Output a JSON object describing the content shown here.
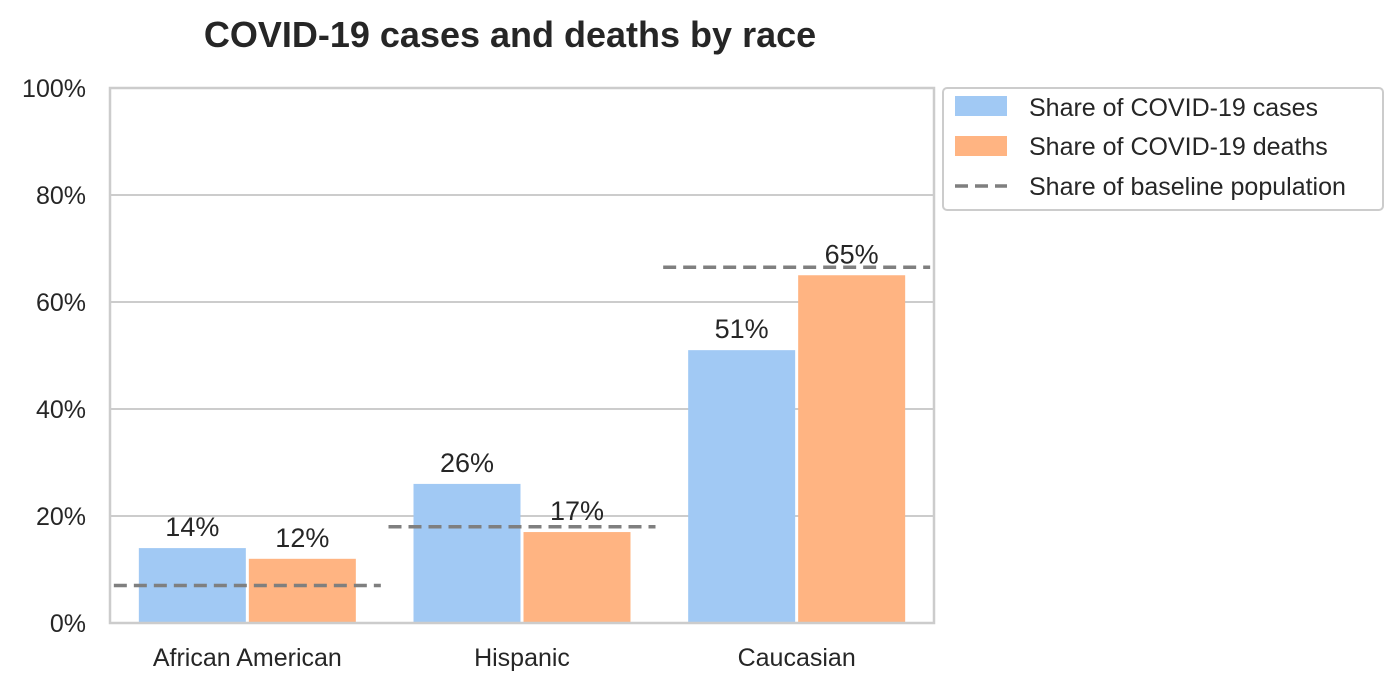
{
  "chart_data": {
    "type": "bar",
    "title": "COVID-19 cases and deaths by race",
    "xlabel": "",
    "ylabel": "",
    "categories": [
      "African American",
      "Hispanic",
      "Caucasian"
    ],
    "series": [
      {
        "name": "Share of COVID-19 cases",
        "values": [
          14,
          26,
          51
        ],
        "labels": [
          "14%",
          "26%",
          "51%"
        ],
        "color": "#a1c9f4"
      },
      {
        "name": "Share of COVID-19 deaths",
        "values": [
          12,
          17,
          65
        ],
        "labels": [
          "12%",
          "17%",
          "65%"
        ],
        "color": "#ffb482"
      }
    ],
    "baseline": {
      "name": "Share of baseline population",
      "values": [
        7,
        18,
        66.5
      ],
      "color": "#7f7f7f",
      "style": "dashed"
    },
    "ylim": [
      0,
      100
    ],
    "yticks": [
      0,
      20,
      40,
      60,
      80,
      100
    ],
    "ytick_labels": [
      "0%",
      "20%",
      "40%",
      "60%",
      "80%",
      "100%"
    ],
    "grid": "horizontal",
    "legend_position": "outside-top-right"
  }
}
